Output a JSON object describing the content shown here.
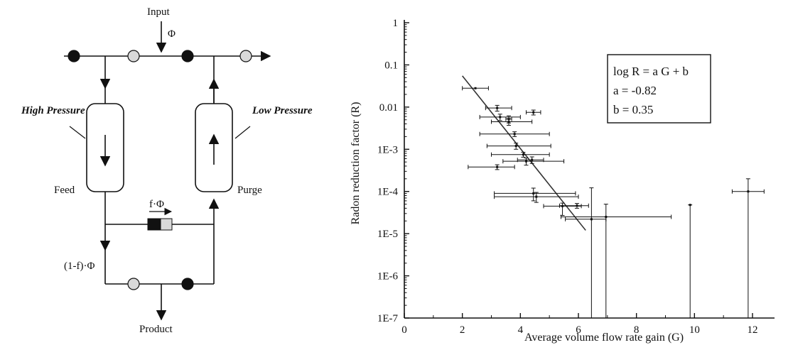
{
  "diagram": {
    "input_label": "Input",
    "input_flow": "Φ",
    "high_pressure": "High Pressure",
    "low_pressure": "Low Pressure",
    "feed": "Feed",
    "purge": "Purge",
    "split_flow": "f·Φ",
    "product_flow": "(1-f)·Φ",
    "product_label": "Product",
    "colors": {
      "valve_closed": "#111111",
      "valve_open": "#d9d9d9",
      "line": "#111111"
    }
  },
  "chart_data": {
    "type": "scatter",
    "title": "",
    "xlabel": "Average volume flow rate gain (G)",
    "ylabel": "Radon reduction factor (R)",
    "x_ticks": [
      "0",
      "2",
      "4",
      "6",
      "8",
      "10",
      "12"
    ],
    "y_ticks": [
      "1E-7",
      "1E-6",
      "1E-5",
      "1E-4",
      "1E-3",
      "0.01",
      "0.1",
      "1"
    ],
    "xlim": [
      0,
      13
    ],
    "ylim": [
      1e-07,
      1
    ],
    "y_scale": "log",
    "grid": false,
    "annotation": [
      "log R = a G + b",
      "a = -0.82",
      "b = 0.35"
    ],
    "points": [
      {
        "x": 2.45,
        "y": 0.028,
        "xerr": [
          0.45,
          0.45
        ],
        "yerr": [
          0.0,
          0.0
        ]
      },
      {
        "x": 3.2,
        "y": 0.0095,
        "xerr": [
          0.4,
          0.5
        ],
        "yerr": [
          0.0015,
          0.0015
        ]
      },
      {
        "x": 3.3,
        "y": 0.0058,
        "xerr": [
          0.7,
          0.7
        ],
        "yerr": [
          0.001,
          0.001
        ]
      },
      {
        "x": 3.6,
        "y": 0.0052,
        "xerr": [
          0.1,
          0.1
        ],
        "yerr": [
          0.001,
          0.001
        ]
      },
      {
        "x": 4.45,
        "y": 0.0075,
        "xerr": [
          0.25,
          0.25
        ],
        "yerr": [
          0.001,
          0.001
        ]
      },
      {
        "x": 3.6,
        "y": 0.0045,
        "xerr": [
          0.6,
          0.8
        ],
        "yerr": [
          0.0008,
          0.0008
        ]
      },
      {
        "x": 3.8,
        "y": 0.0023,
        "xerr": [
          1.2,
          1.2
        ],
        "yerr": [
          0.0003,
          0.0003
        ]
      },
      {
        "x": 3.85,
        "y": 0.0012,
        "xerr": [
          1.0,
          1.2
        ],
        "yerr": [
          0.0002,
          0.0002
        ]
      },
      {
        "x": 4.1,
        "y": 0.00075,
        "xerr": [
          1.1,
          0.9
        ],
        "yerr": [
          0.0001,
          0.0001
        ]
      },
      {
        "x": 4.4,
        "y": 0.00056,
        "xerr": [
          0.5,
          0.4
        ],
        "yerr": [
          0.0001,
          0.0001
        ]
      },
      {
        "x": 4.2,
        "y": 0.00052,
        "xerr": [
          0.8,
          1.3
        ],
        "yerr": [
          0.0001,
          0.0001
        ]
      },
      {
        "x": 3.2,
        "y": 0.00038,
        "xerr": [
          1.0,
          0.6
        ],
        "yerr": [
          5e-05,
          5e-05
        ]
      },
      {
        "x": 4.45,
        "y": 9e-05,
        "xerr": [
          1.35,
          1.45
        ],
        "yerr": [
          3e-05,
          3e-05
        ]
      },
      {
        "x": 4.55,
        "y": 7.5e-05,
        "xerr": [
          1.45,
          1.45
        ],
        "yerr": [
          2e-05,
          2e-05
        ]
      },
      {
        "x": 5.45,
        "y": 4.5e-05,
        "xerr": [
          0.65,
          0.65
        ],
        "yerr": [
          1.8e-05,
          8e-06
        ]
      },
      {
        "x": 5.95,
        "y": 4.6e-05,
        "xerr": [
          0.6,
          0.4
        ],
        "yerr": [
          6e-06,
          6e-06
        ]
      },
      {
        "x": 6.45,
        "y": 2.2e-05,
        "xerr": [
          0.9,
          0.5
        ],
        "yerr": [
          2.2e-05,
          9.99e-05
        ]
      },
      {
        "x": 6.95,
        "y": 2.5e-05,
        "xerr": [
          1.55,
          2.25
        ],
        "yerr": [
          2.5e-05,
          2.5e-05
        ]
      },
      {
        "x": 9.85,
        "y": 4.8e-05,
        "xerr": [
          0.0,
          0.0
        ],
        "yerr": [
          4.8e-05,
          0.0
        ]
      },
      {
        "x": 11.85,
        "y": 0.0001,
        "xerr": [
          0.55,
          0.55
        ],
        "yerr": [
          0.0001,
          0.0001
        ]
      }
    ],
    "fit_line": {
      "x": [
        2.0,
        6.25
      ],
      "y": [
        0.055,
        1.2e-05
      ]
    }
  }
}
